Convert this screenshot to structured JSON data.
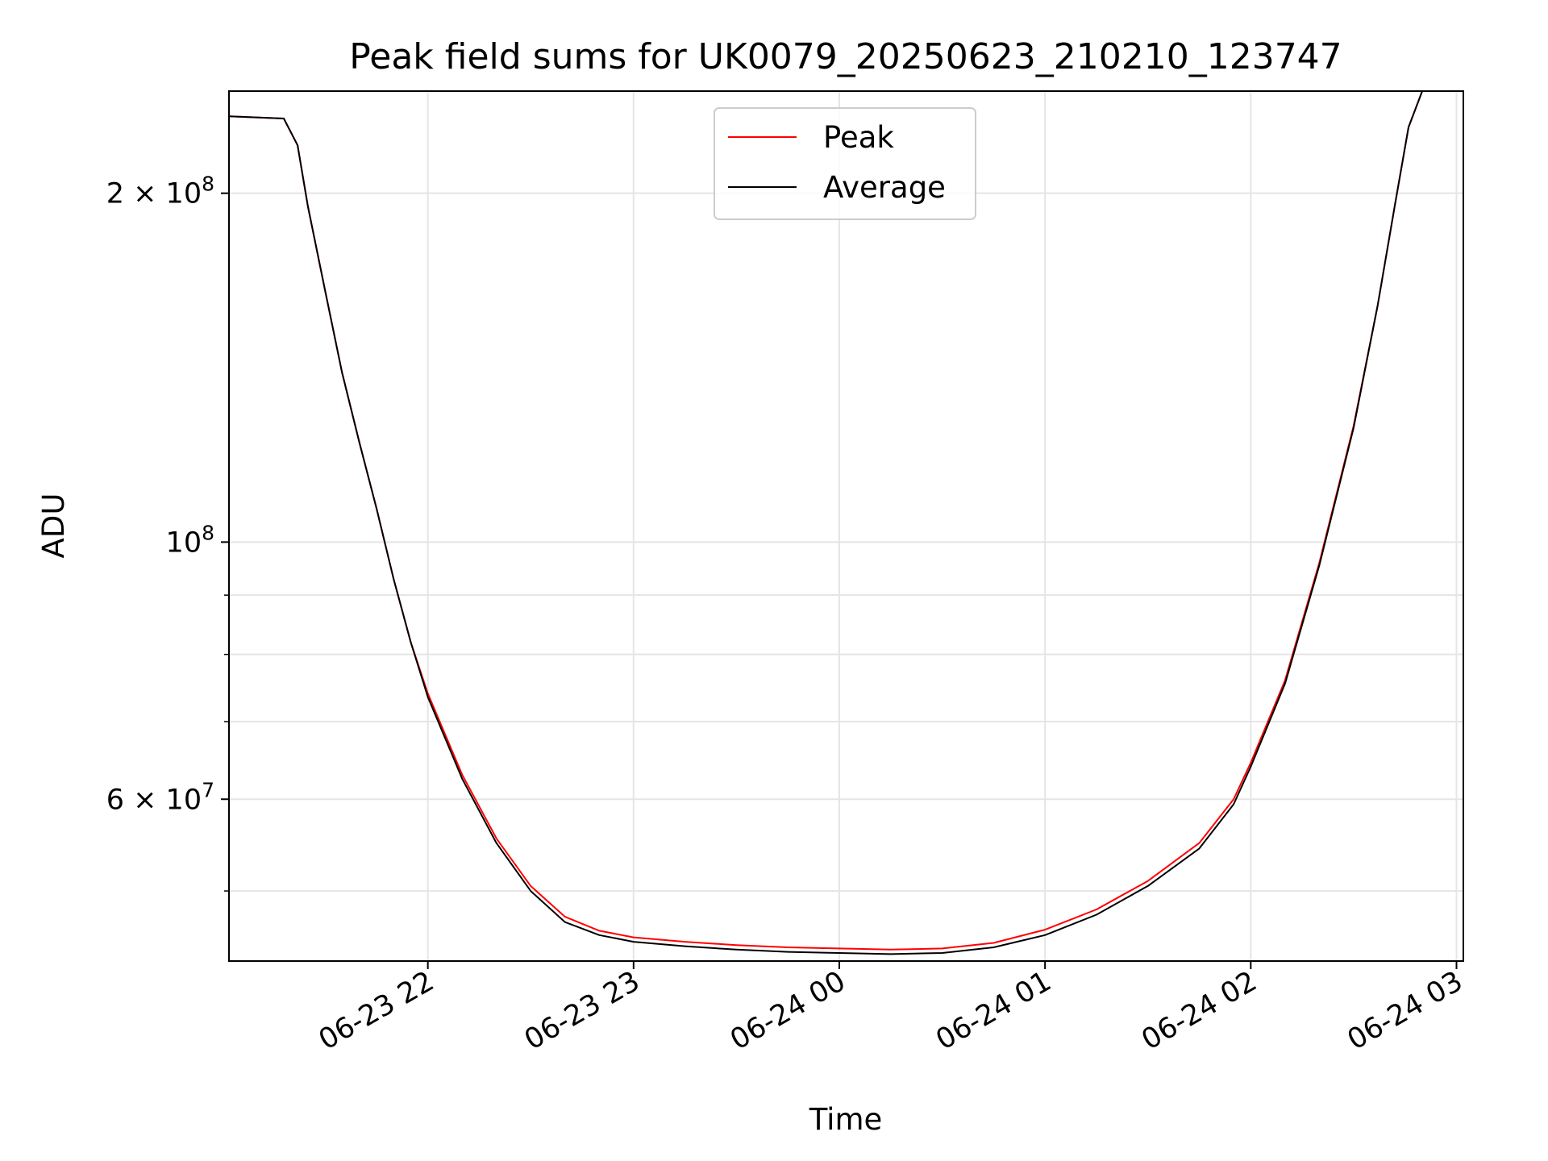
{
  "chart_data": {
    "type": "line",
    "title": "Peak field sums for UK0079_20250623_210210_123747",
    "xlabel": "Time",
    "ylabel": "ADU",
    "yscale": "log",
    "grid": true,
    "legend_placement": "upper center",
    "xlim": [
      "2025-06-23 21:02",
      "2025-06-24 03:02"
    ],
    "ylim": [
      43500000,
      245000000
    ],
    "x_ticks": [
      "06-23 22",
      "06-23 23",
      "06-24 00",
      "06-24 01",
      "06-24 02",
      "06-24 03"
    ],
    "y_ticks": [
      {
        "value": 200000000,
        "mantissa": "2",
        "exponent": "8"
      },
      {
        "value": 100000000,
        "mantissa": "",
        "exponent": "8"
      },
      {
        "value": 60000000,
        "mantissa": "6",
        "exponent": "7"
      }
    ],
    "y_minor_ticks": [
      50000000,
      70000000,
      80000000,
      90000000
    ],
    "x": [
      "2025-06-23 21:02",
      "2025-06-23 21:18",
      "2025-06-23 21:22",
      "2025-06-23 21:25",
      "2025-06-23 21:30",
      "2025-06-23 21:35",
      "2025-06-23 21:40",
      "2025-06-23 21:45",
      "2025-06-23 21:50",
      "2025-06-23 21:55",
      "2025-06-23 22:00",
      "2025-06-23 22:10",
      "2025-06-23 22:20",
      "2025-06-23 22:30",
      "2025-06-23 22:40",
      "2025-06-23 22:50",
      "2025-06-23 23:00",
      "2025-06-23 23:15",
      "2025-06-23 23:30",
      "2025-06-23 23:45",
      "2025-06-24 00:00",
      "2025-06-24 00:15",
      "2025-06-24 00:30",
      "2025-06-24 00:45",
      "2025-06-24 01:00",
      "2025-06-24 01:15",
      "2025-06-24 01:30",
      "2025-06-24 01:45",
      "2025-06-24 01:55",
      "2025-06-24 02:00",
      "2025-06-24 02:10",
      "2025-06-24 02:20",
      "2025-06-24 02:30",
      "2025-06-24 02:37",
      "2025-06-24 02:42",
      "2025-06-24 02:46",
      "2025-06-24 02:50",
      "2025-06-24 03:02"
    ],
    "series": [
      {
        "name": "Peak",
        "color": "#ff0000",
        "values": [
          233000000,
          232000000,
          220000000,
          195000000,
          165000000,
          140000000,
          122000000,
          107000000,
          93000000,
          82000000,
          74000000,
          63000000,
          55500000,
          50500000,
          47500000,
          46200000,
          45600000,
          45200000,
          44900000,
          44700000,
          44600000,
          44500000,
          44600000,
          45100000,
          46300000,
          48200000,
          51000000,
          55000000,
          60000000,
          64500000,
          76000000,
          96000000,
          126000000,
          160000000,
          195000000,
          228000000,
          245000000,
          245000000
        ]
      },
      {
        "name": "Average",
        "color": "#000000",
        "values": [
          233000000,
          232000000,
          220000000,
          195000000,
          165000000,
          140000000,
          122000000,
          107000000,
          93000000,
          82000000,
          73500000,
          62500000,
          55000000,
          50000000,
          47000000,
          45800000,
          45200000,
          44800000,
          44500000,
          44300000,
          44200000,
          44100000,
          44200000,
          44700000,
          45800000,
          47700000,
          50500000,
          54400000,
          59400000,
          64000000,
          75500000,
          95500000,
          125500000,
          160000000,
          195000000,
          228000000,
          245000000,
          245000000
        ]
      }
    ]
  }
}
